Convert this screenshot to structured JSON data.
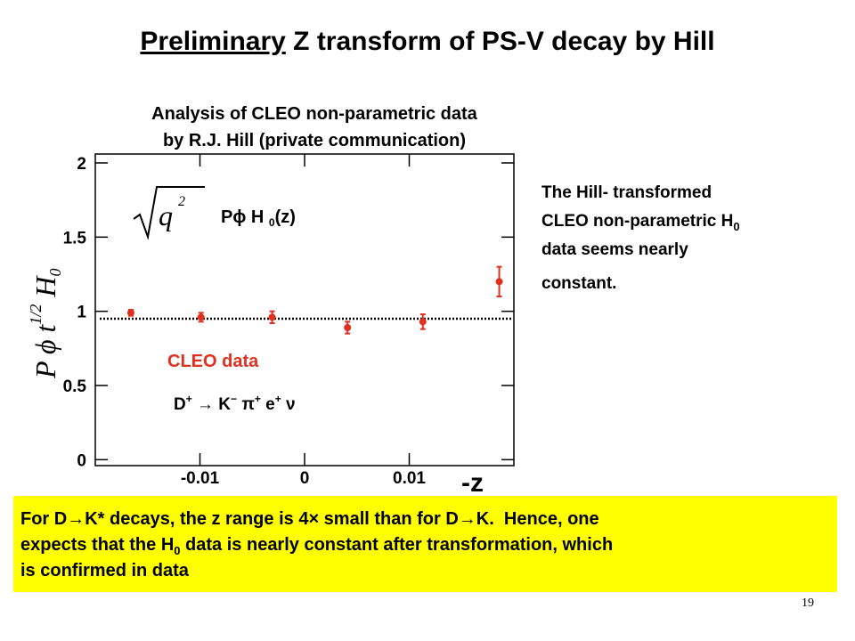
{
  "slide": {
    "title_underlined": "Preliminary",
    "title_rest": "Z transform of PS-V decay by Hill",
    "caption": [
      "Analysis of CLEO non-parametric data",
      "by R.J. Hill  (private communication)"
    ],
    "note": [
      "The Hill- transformed",
      "CLEO non-parametric H",
      "0",
      "data seems nearly",
      "constant."
    ],
    "box": [
      "For D→K* decays, the z range is 4× small than for D→K.  Hence, one",
      "expects that the H",
      "0",
      " data is nearly constant after transformation, which",
      "is confirmed in data"
    ],
    "page_number": "19"
  },
  "chart_data": {
    "type": "scatter",
    "xlabel": "-z",
    "ylabel": [
      "P ϕ t",
      "1/2",
      " H",
      "0"
    ],
    "formula": [
      "q",
      "2",
      "Pϕ",
      "  H ",
      "0",
      "(z)"
    ],
    "process": [
      "D",
      "+",
      " → K",
      "−",
      " π",
      "+",
      " e",
      "+",
      " ν"
    ],
    "xlim": [
      -0.02,
      0.02
    ],
    "ylim": [
      -0.04,
      2.06
    ],
    "xticks": [
      -0.01,
      0,
      0.01
    ],
    "yticks": [
      0,
      0.5,
      1,
      1.5,
      2
    ],
    "reference_line": 0.95,
    "series": [
      {
        "name": "CLEO data",
        "color": "#e0301e",
        "x": [
          -0.0166,
          -0.0099,
          -0.0031,
          0.0041,
          0.0113,
          0.0186
        ],
        "values": [
          0.99,
          0.96,
          0.96,
          0.89,
          0.93,
          1.2
        ],
        "errors": [
          0.02,
          0.03,
          0.04,
          0.04,
          0.05,
          0.1
        ]
      }
    ]
  }
}
